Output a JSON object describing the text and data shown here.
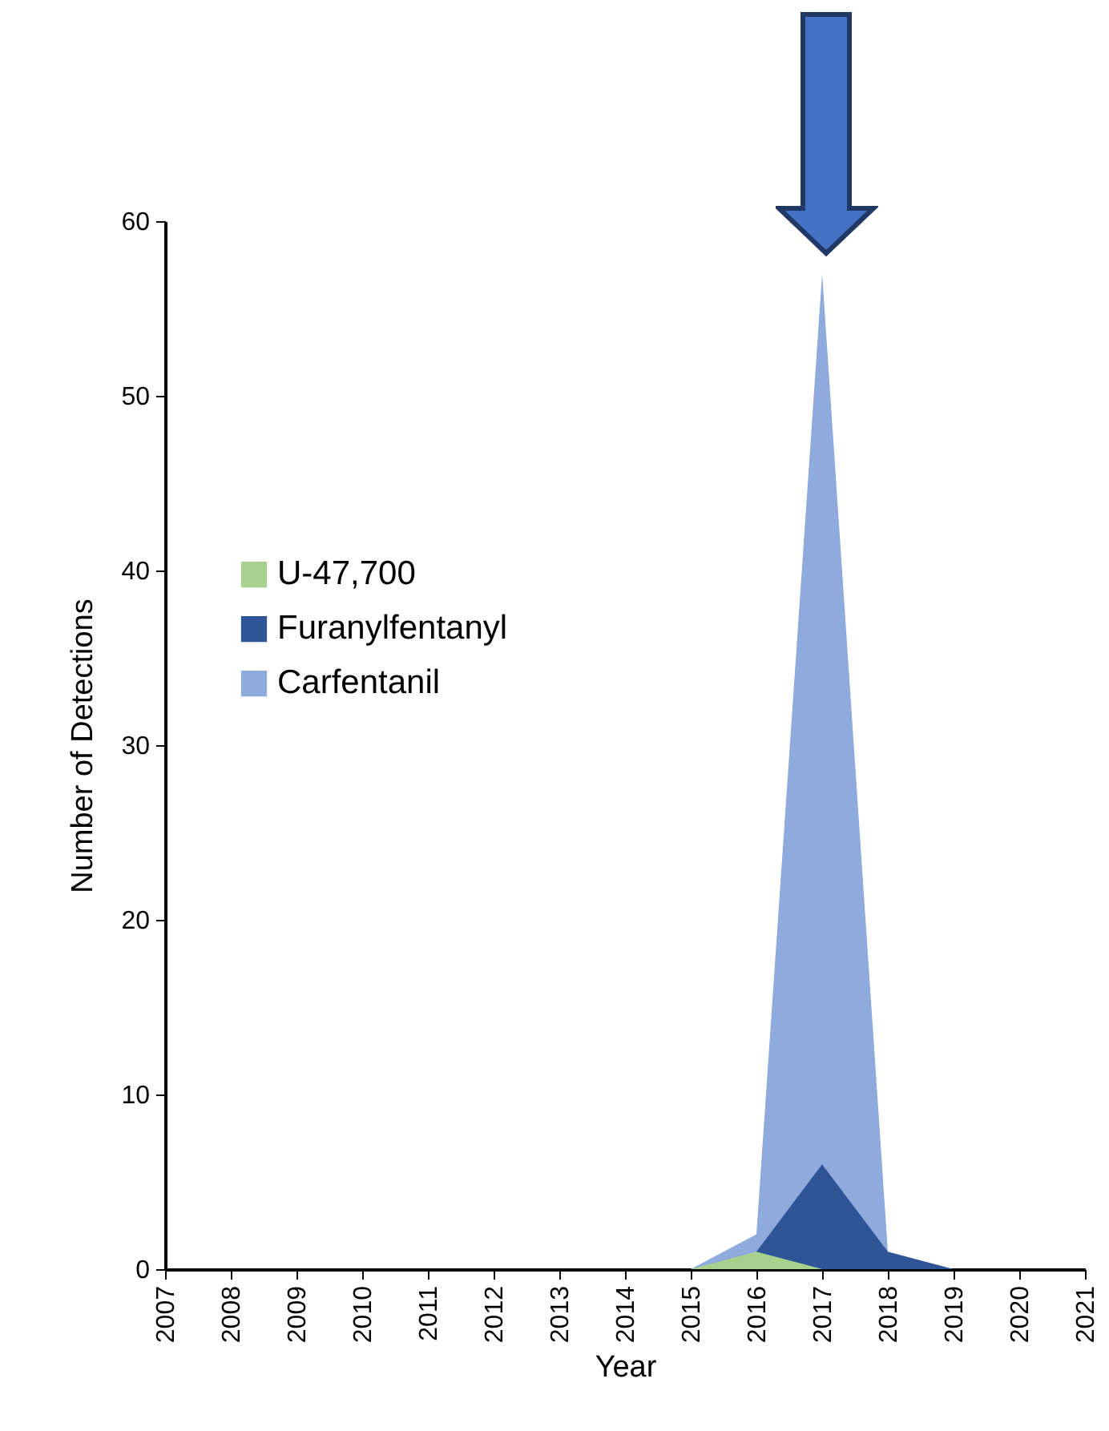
{
  "chart_data": {
    "type": "area",
    "xlabel": "Year",
    "ylabel": "Number of Detections",
    "x": [
      2015,
      2016,
      2017,
      2018,
      2019
    ],
    "series": [
      {
        "name": "U-47,700",
        "color": "#a9d18e",
        "values": [
          0,
          1,
          0,
          null,
          null
        ]
      },
      {
        "name": "Furanylfentanyl",
        "color": "#2f5597",
        "values": [
          null,
          1,
          6,
          1,
          0
        ]
      },
      {
        "name": "Carfentanil",
        "color": "#8faadc",
        "values": [
          0,
          2,
          57,
          1,
          null
        ]
      }
    ],
    "xlim": [
      2007,
      2021
    ],
    "xticks": [
      2007,
      2008,
      2009,
      2010,
      2011,
      2012,
      2013,
      2014,
      2015,
      2016,
      2017,
      2018,
      2019,
      2020,
      2021
    ],
    "ylim": [
      0,
      60
    ],
    "yticks": [
      0,
      10,
      20,
      30,
      40,
      50,
      60
    ],
    "grid": false,
    "legend": "left"
  }
}
